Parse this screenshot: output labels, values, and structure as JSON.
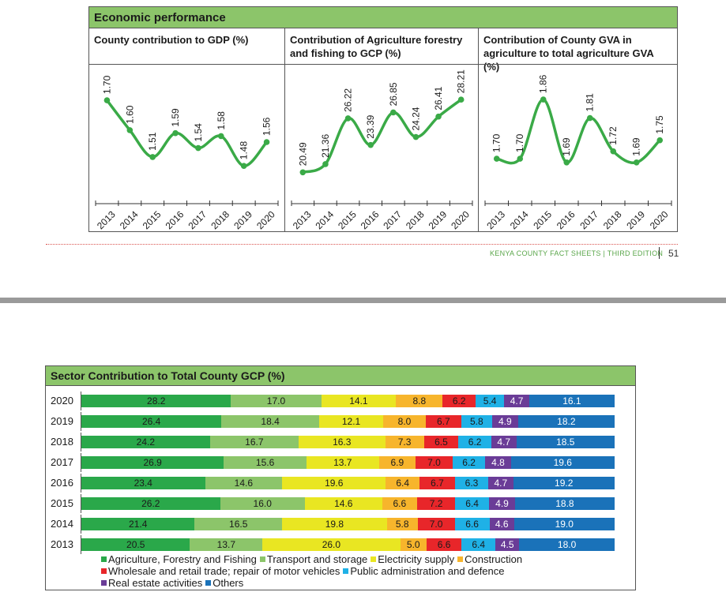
{
  "top_panel": {
    "header": "Economic performance",
    "columns": [
      {
        "title_line1": "County contribution to GDP (%)",
        "title_line2": ""
      },
      {
        "title_line1": "Contribution of Agriculture forestry",
        "title_line2": "and fishing to GCP (%)"
      },
      {
        "title_line1": "Contribution of County GVA in",
        "title_line2": "agriculture to total agriculture GVA (%)"
      }
    ]
  },
  "footer": {
    "text": "KENYA COUNTY FACT SHEETS | THIRD EDITION",
    "page": "51"
  },
  "bottom_panel": {
    "header": "Sector Contribution to Total County GCP (%)"
  },
  "colors": {
    "line": "#3aaa47",
    "agri": "#2aa84a",
    "transport": "#8cc56a",
    "electricity": "#e9e622",
    "construction": "#f7b52c",
    "wholesale": "#e8262a",
    "public": "#1fb1e6",
    "real_estate": "#6a3c97",
    "others": "#1a72b9"
  },
  "chart_data": [
    {
      "type": "line",
      "title": "County contribution to GDP (%)",
      "x": [
        "2013",
        "2014",
        "2015",
        "2016",
        "2017",
        "2018",
        "2019",
        "2020"
      ],
      "values": [
        1.7,
        1.6,
        1.51,
        1.59,
        1.54,
        1.58,
        1.48,
        1.56
      ],
      "labels": [
        "1.70",
        "1.60",
        "1.51",
        "1.59",
        "1.54",
        "1.58",
        "1.48",
        "1.56"
      ],
      "ylim": [
        1.38,
        1.74
      ]
    },
    {
      "type": "line",
      "title": "Contribution of Agriculture forestry and fishing to GCP (%)",
      "x": [
        "2013",
        "2014",
        "2015",
        "2016",
        "2017",
        "2018",
        "2019",
        "2020"
      ],
      "values": [
        20.49,
        21.36,
        26.22,
        23.39,
        26.85,
        24.24,
        26.41,
        28.21
      ],
      "labels": [
        "20.49",
        "21.36",
        "26.22",
        "23.39",
        "26.85",
        "24.24",
        "26.41",
        "28.21"
      ],
      "ylim": [
        18.0,
        29.4
      ]
    },
    {
      "type": "line",
      "title": "Contribution of County GVA in agriculture to total agriculture GVA (%)",
      "x": [
        "2013",
        "2014",
        "2015",
        "2016",
        "2017",
        "2018",
        "2019",
        "2020"
      ],
      "values": [
        1.7,
        1.7,
        1.86,
        1.69,
        1.81,
        1.72,
        1.69,
        1.75
      ],
      "labels": [
        "1.70",
        "1.70",
        "1.86",
        "1.69",
        "1.81",
        "1.72",
        "1.69",
        "1.75"
      ],
      "ylim": [
        1.6,
        1.89
      ]
    },
    {
      "type": "bar",
      "orientation": "horizontal-stacked",
      "title": "Sector Contribution to Total County GCP (%)",
      "categories": [
        "2020",
        "2019",
        "2018",
        "2017",
        "2016",
        "2015",
        "2014",
        "2013"
      ],
      "series": [
        {
          "name": "Agriculture, Forestry and Fishing",
          "key": "agri",
          "values": [
            28.2,
            26.4,
            24.2,
            26.9,
            23.4,
            26.2,
            21.4,
            20.5
          ],
          "labels": [
            "28.2",
            "26.4",
            "24.2",
            "26.9",
            "23.4",
            "26.2",
            "21.4",
            "20.5"
          ]
        },
        {
          "name": "Transport and storage",
          "key": "transport",
          "values": [
            17.0,
            18.4,
            16.7,
            15.6,
            14.6,
            16.0,
            16.5,
            13.7
          ],
          "labels": [
            "17.0",
            "18.4",
            "16.7",
            "15.6",
            "14.6",
            "16.0",
            "16.5",
            "13.7"
          ]
        },
        {
          "name": "Electricity supply",
          "key": "electricity",
          "values": [
            14.1,
            12.1,
            16.3,
            13.7,
            19.6,
            14.6,
            19.8,
            26.0
          ],
          "labels": [
            "14.1",
            "12.1",
            "16.3",
            "13.7",
            "19.6",
            "14.6",
            "19.8",
            "26.0"
          ]
        },
        {
          "name": "Construction",
          "key": "construction",
          "values": [
            8.8,
            8.0,
            7.3,
            6.9,
            6.4,
            6.6,
            5.8,
            5.0
          ],
          "labels": [
            "8.8",
            "8.0",
            "7.3",
            "6.9",
            "6.4",
            "6.6",
            "5.8",
            "5.0"
          ]
        },
        {
          "name": "Wholesale and retail trade; repair of motor vehicles",
          "key": "wholesale",
          "values": [
            6.2,
            6.7,
            6.5,
            7.0,
            6.7,
            7.2,
            7.0,
            6.6
          ],
          "labels": [
            "6.2",
            "6.7",
            "6.5",
            "7.0",
            "6.7",
            "7.2",
            "7.0",
            "6.6"
          ]
        },
        {
          "name": "Public administration and defence",
          "key": "public",
          "values": [
            5.4,
            5.8,
            6.2,
            6.2,
            6.3,
            6.4,
            6.6,
            6.4
          ],
          "labels": [
            "5.4",
            "5.8",
            "6.2",
            "6.2",
            "6.3",
            "6.4",
            "6.6",
            "6.4"
          ]
        },
        {
          "name": "Real estate activities",
          "key": "real_estate",
          "values": [
            4.7,
            4.9,
            4.7,
            4.8,
            4.7,
            4.9,
            4.6,
            4.5
          ],
          "labels": [
            "4.7",
            "4.9",
            "4.7",
            "4.8",
            "4.7",
            "4.9",
            "4.6",
            "4.5"
          ]
        },
        {
          "name": "Others",
          "key": "others",
          "values": [
            16.1,
            18.2,
            18.5,
            19.6,
            19.2,
            18.8,
            19.0,
            18.0
          ],
          "labels": [
            "16.1",
            "18.2",
            "18.5",
            "19.6",
            "19.2",
            "18.8",
            "19.0",
            "18.0"
          ]
        }
      ],
      "legend_position": "bottom"
    }
  ]
}
